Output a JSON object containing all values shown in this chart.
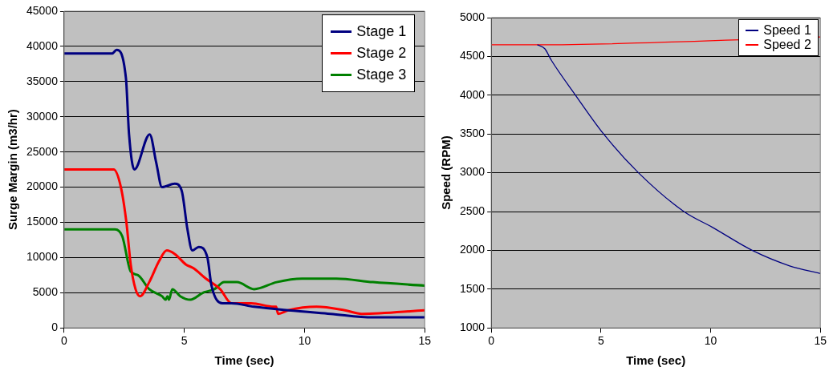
{
  "chart_data": [
    {
      "type": "line",
      "xlabel": "Time (sec)",
      "ylabel": "Surge Margin (m3/hr)",
      "xlim": [
        0,
        15
      ],
      "xticks": [
        0,
        5,
        10,
        15
      ],
      "ylim": [
        0,
        45000
      ],
      "yticks": [
        0,
        5000,
        10000,
        15000,
        20000,
        25000,
        30000,
        35000,
        40000,
        45000
      ],
      "grid": "y",
      "legend": "top right",
      "marker": "none",
      "line_style": "solid",
      "series": [
        {
          "name": "Stage 1",
          "color": "#000080",
          "x": [
            0,
            2.0,
            2.18,
            2.57,
            2.7,
            2.92,
            3.56,
            3.83,
            4.07,
            4.6,
            4.89,
            5.13,
            5.33,
            5.6,
            5.96,
            6.13,
            6.58,
            6.96,
            7.9,
            9.32,
            11.08,
            12.85,
            15
          ],
          "values": [
            39000,
            39000,
            39500,
            35500,
            27500,
            22500,
            27500,
            23500,
            20000,
            20500,
            19500,
            14000,
            11000,
            11500,
            10000,
            6000,
            3500,
            3500,
            3000,
            2500,
            2000,
            1500,
            1500
          ]
        },
        {
          "name": "Stage 2",
          "color": "#ff0000",
          "x": [
            0,
            2.06,
            2.36,
            2.59,
            2.77,
            2.97,
            3.16,
            3.54,
            3.95,
            4.27,
            4.6,
            5.07,
            5.37,
            5.9,
            6.49,
            6.96,
            7.78,
            8.73,
            8.82,
            8.9,
            9.32,
            10.5,
            11.68,
            12.38,
            15
          ],
          "values": [
            22500,
            22500,
            20000,
            15000,
            9000,
            5500,
            4500,
            6500,
            9500,
            11000,
            10500,
            9000,
            8500,
            7000,
            5500,
            3500,
            3500,
            3000,
            3000,
            2000,
            2500,
            3000,
            2500,
            2000,
            2500
          ]
        },
        {
          "name": "Stage 3",
          "color": "#008000",
          "x": [
            0,
            2.12,
            2.42,
            2.77,
            3.07,
            3.54,
            4.07,
            4.22,
            4.3,
            4.36,
            4.5,
            4.83,
            5.25,
            5.78,
            6.25,
            6.66,
            7.19,
            7.9,
            8.84,
            9.9,
            11.32,
            12.85,
            15
          ],
          "values": [
            14000,
            14000,
            13000,
            8000,
            7500,
            5500,
            4500,
            4000,
            4500,
            4000,
            5500,
            4500,
            4000,
            5000,
            5500,
            6500,
            6500,
            5500,
            6500,
            7000,
            7000,
            6500,
            6000
          ]
        }
      ]
    },
    {
      "type": "line",
      "xlabel": "Time (sec)",
      "ylabel": "Speed (RPM)",
      "xlim": [
        0,
        15
      ],
      "xticks": [
        0,
        5,
        10,
        15
      ],
      "ylim": [
        1000,
        5000
      ],
      "yticks": [
        1000,
        1500,
        2000,
        2500,
        3000,
        3500,
        4000,
        4500,
        5000
      ],
      "grid": "y",
      "legend": "top right",
      "marker": "none",
      "line_style": "solid",
      "series": [
        {
          "name": "Speed 1",
          "color": "#000080",
          "x": [
            2.1,
            2.44,
            2.74,
            3.84,
            5.12,
            6.71,
            8.78,
            10.06,
            11.89,
            13.6,
            15
          ],
          "values": [
            4650,
            4600,
            4450,
            4000,
            3500,
            3000,
            2500,
            2300,
            2000,
            1800,
            1700
          ]
        },
        {
          "name": "Speed 2",
          "color": "#ff0000",
          "x": [
            0,
            2.1,
            15
          ],
          "values": [
            4650,
            4650,
            4750
          ]
        }
      ]
    }
  ]
}
